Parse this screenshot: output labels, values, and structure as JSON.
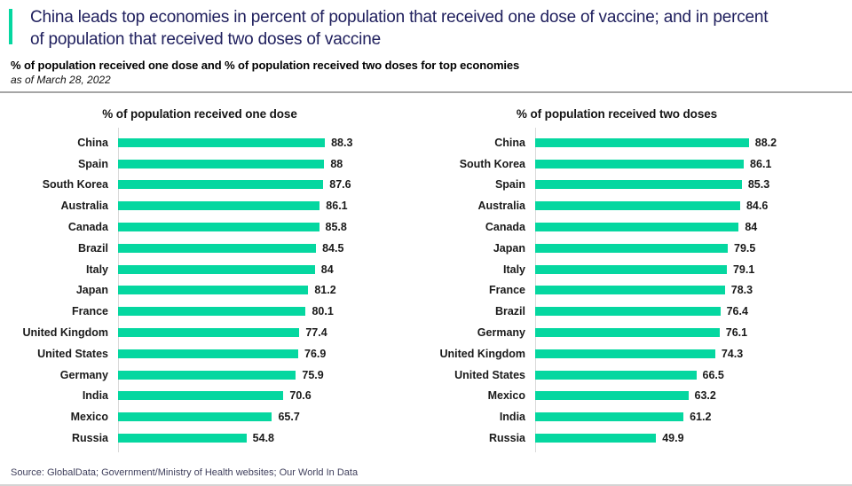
{
  "header": {
    "title": "China leads top economies in percent of population that received one dose of vaccine; and in percent of population that received two doses of vaccine",
    "subtitle": "% of population received one dose and % of population received two doses for top economies",
    "dateline": "as of March 28, 2022"
  },
  "footer": {
    "source": "Source: GlobalData; Government/Ministry of Health websites; Our World In Data"
  },
  "colors": {
    "bar_green": "#05d7a0",
    "accent_green": "#05d7a0",
    "title_navy": "#20205e",
    "divider_gray": "#a6a6a6"
  },
  "chart_data": [
    {
      "type": "bar",
      "orientation": "horizontal",
      "title": "% of population received one dose",
      "categories": [
        "China",
        "Spain",
        "South Korea",
        "Australia",
        "Canada",
        "Brazil",
        "Italy",
        "Japan",
        "France",
        "United Kingdom",
        "United States",
        "Germany",
        "India",
        "Mexico",
        "Russia"
      ],
      "values": [
        88.3,
        88,
        87.6,
        86.1,
        85.8,
        84.5,
        84,
        81.2,
        80.1,
        77.4,
        76.9,
        75.9,
        70.6,
        65.7,
        54.8
      ],
      "xlim": [
        0,
        100
      ],
      "value_labels": true,
      "grid": false,
      "bar_color": "#05d7a0"
    },
    {
      "type": "bar",
      "orientation": "horizontal",
      "title": "% of population received two doses",
      "categories": [
        "China",
        "South Korea",
        "Spain",
        "Australia",
        "Canada",
        "Japan",
        "Italy",
        "France",
        "Brazil",
        "Germany",
        "United Kingdom",
        "United States",
        "Mexico",
        "India",
        "Russia"
      ],
      "values": [
        88.2,
        86.1,
        85.3,
        84.6,
        84,
        79.5,
        79.1,
        78.3,
        76.4,
        76.1,
        74.3,
        66.5,
        63.2,
        61.2,
        49.9
      ],
      "xlim": [
        0,
        100
      ],
      "value_labels": true,
      "grid": false,
      "bar_color": "#05d7a0"
    }
  ]
}
